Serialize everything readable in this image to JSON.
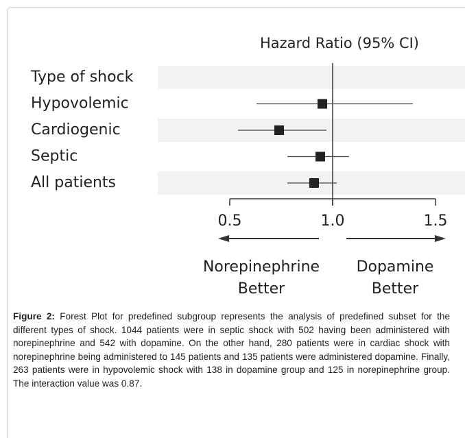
{
  "chart_data": {
    "type": "forest",
    "title": "Hazard Ratio (95% CI)",
    "categories": [
      "Type of shock",
      "Hypovolemic",
      "Cardiogenic",
      "Septic",
      "All patients"
    ],
    "values": [
      null,
      0.95,
      0.74,
      0.94,
      0.91
    ],
    "lower": [
      null,
      0.63,
      0.54,
      0.78,
      0.78
    ],
    "upper": [
      null,
      1.39,
      0.97,
      1.08,
      1.02
    ],
    "xlim": [
      0.5,
      1.5
    ],
    "xticks": [
      0.5,
      {
        "value": 1,
        "label": "1.0"
      },
      1.5
    ],
    "reference": 1,
    "left_label": [
      "Norepinephrine",
      "Better"
    ],
    "right_label": [
      "Dopamine",
      "Better"
    ],
    "color": "#222222",
    "band_color": "#f2f2f2"
  },
  "caption": {
    "label": "Figure 2:",
    "text": "Forest Plot for predefined subgroup represents the analysis of predefined subset for the different types of shock. 1044 patients were in septic shock with 502 having been administered with norepinephrine and 542 with dopamine. On the other hand, 280 patients were in cardiac shock with norepinephrine being administered to 145 patients and 135 patients were administered dopamine. Finally, 263 patients were in hypovolemic shock with 138 in dopamine group and 125 in norepinephrine group. The interaction value was 0.87."
  }
}
